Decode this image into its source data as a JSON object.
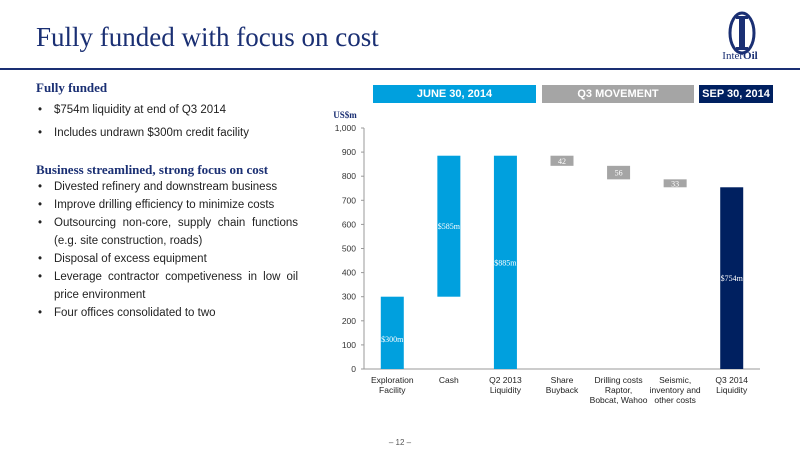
{
  "title": "Fully funded with focus on cost",
  "logo": {
    "brand_prefix": "Inter",
    "brand_suffix": "Oil"
  },
  "left": {
    "heading1": "Fully funded",
    "bullets1": [
      "$754m liquidity at end of Q3 2014",
      "Includes undrawn $300m credit facility"
    ],
    "heading2": "Business streamlined,  strong focus on cost",
    "bullets2": [
      "Divested refinery and downstream business",
      "Improve drilling efficiency to minimize costs",
      "Outsourcing non-core, supply chain functions (e.g. site construction, roads)",
      "Disposal of excess equipment",
      "Leverage contractor competiveness in low oil price environment",
      "Four offices consolidated to two"
    ]
  },
  "headers": {
    "june": "JUNE 30, 2014",
    "movement": "Q3 MOVEMENT",
    "sep": "SEP 30, 2014"
  },
  "colors": {
    "navy": "#1a2f73",
    "cyan": "#00a0de",
    "grey": "#a5a5a5",
    "dark_navy": "#002060"
  },
  "chart_data": {
    "type": "bar",
    "subtype": "waterfall",
    "ylabel": "US$m",
    "ylim": [
      0,
      1000
    ],
    "yticks": [
      "0",
      "100",
      "200",
      "300",
      "400",
      "500",
      "600",
      "700",
      "800",
      "900",
      "1,000"
    ],
    "categories": [
      [
        "Exploration",
        "Facility"
      ],
      [
        "Cash"
      ],
      [
        "Q2 2013",
        "Liquidity"
      ],
      [
        "Share",
        "Buyback"
      ],
      [
        "Drilling costs",
        "Raptor,",
        "Bobcat, Wahoo"
      ],
      [
        "Seismic,",
        "inventory and",
        "other costs"
      ],
      [
        "Q3 2014",
        "Liquidity"
      ]
    ],
    "bars": [
      {
        "start": 0,
        "end": 300,
        "label": "$300m",
        "color": "#00a0de"
      },
      {
        "start": 300,
        "end": 885,
        "label": "$585m",
        "color": "#00a0de"
      },
      {
        "start": 0,
        "end": 885,
        "label": "$885m",
        "color": "#00a0de"
      },
      {
        "start": 843,
        "end": 885,
        "label": "42",
        "color": "#a5a5a5"
      },
      {
        "start": 787,
        "end": 843,
        "label": "56",
        "color": "#a5a5a5"
      },
      {
        "start": 754,
        "end": 787,
        "label": "33",
        "color": "#a5a5a5"
      },
      {
        "start": 0,
        "end": 754,
        "label": "$754m",
        "color": "#002060"
      }
    ],
    "grid": false,
    "legend": "none"
  },
  "footer": "– 12 –"
}
